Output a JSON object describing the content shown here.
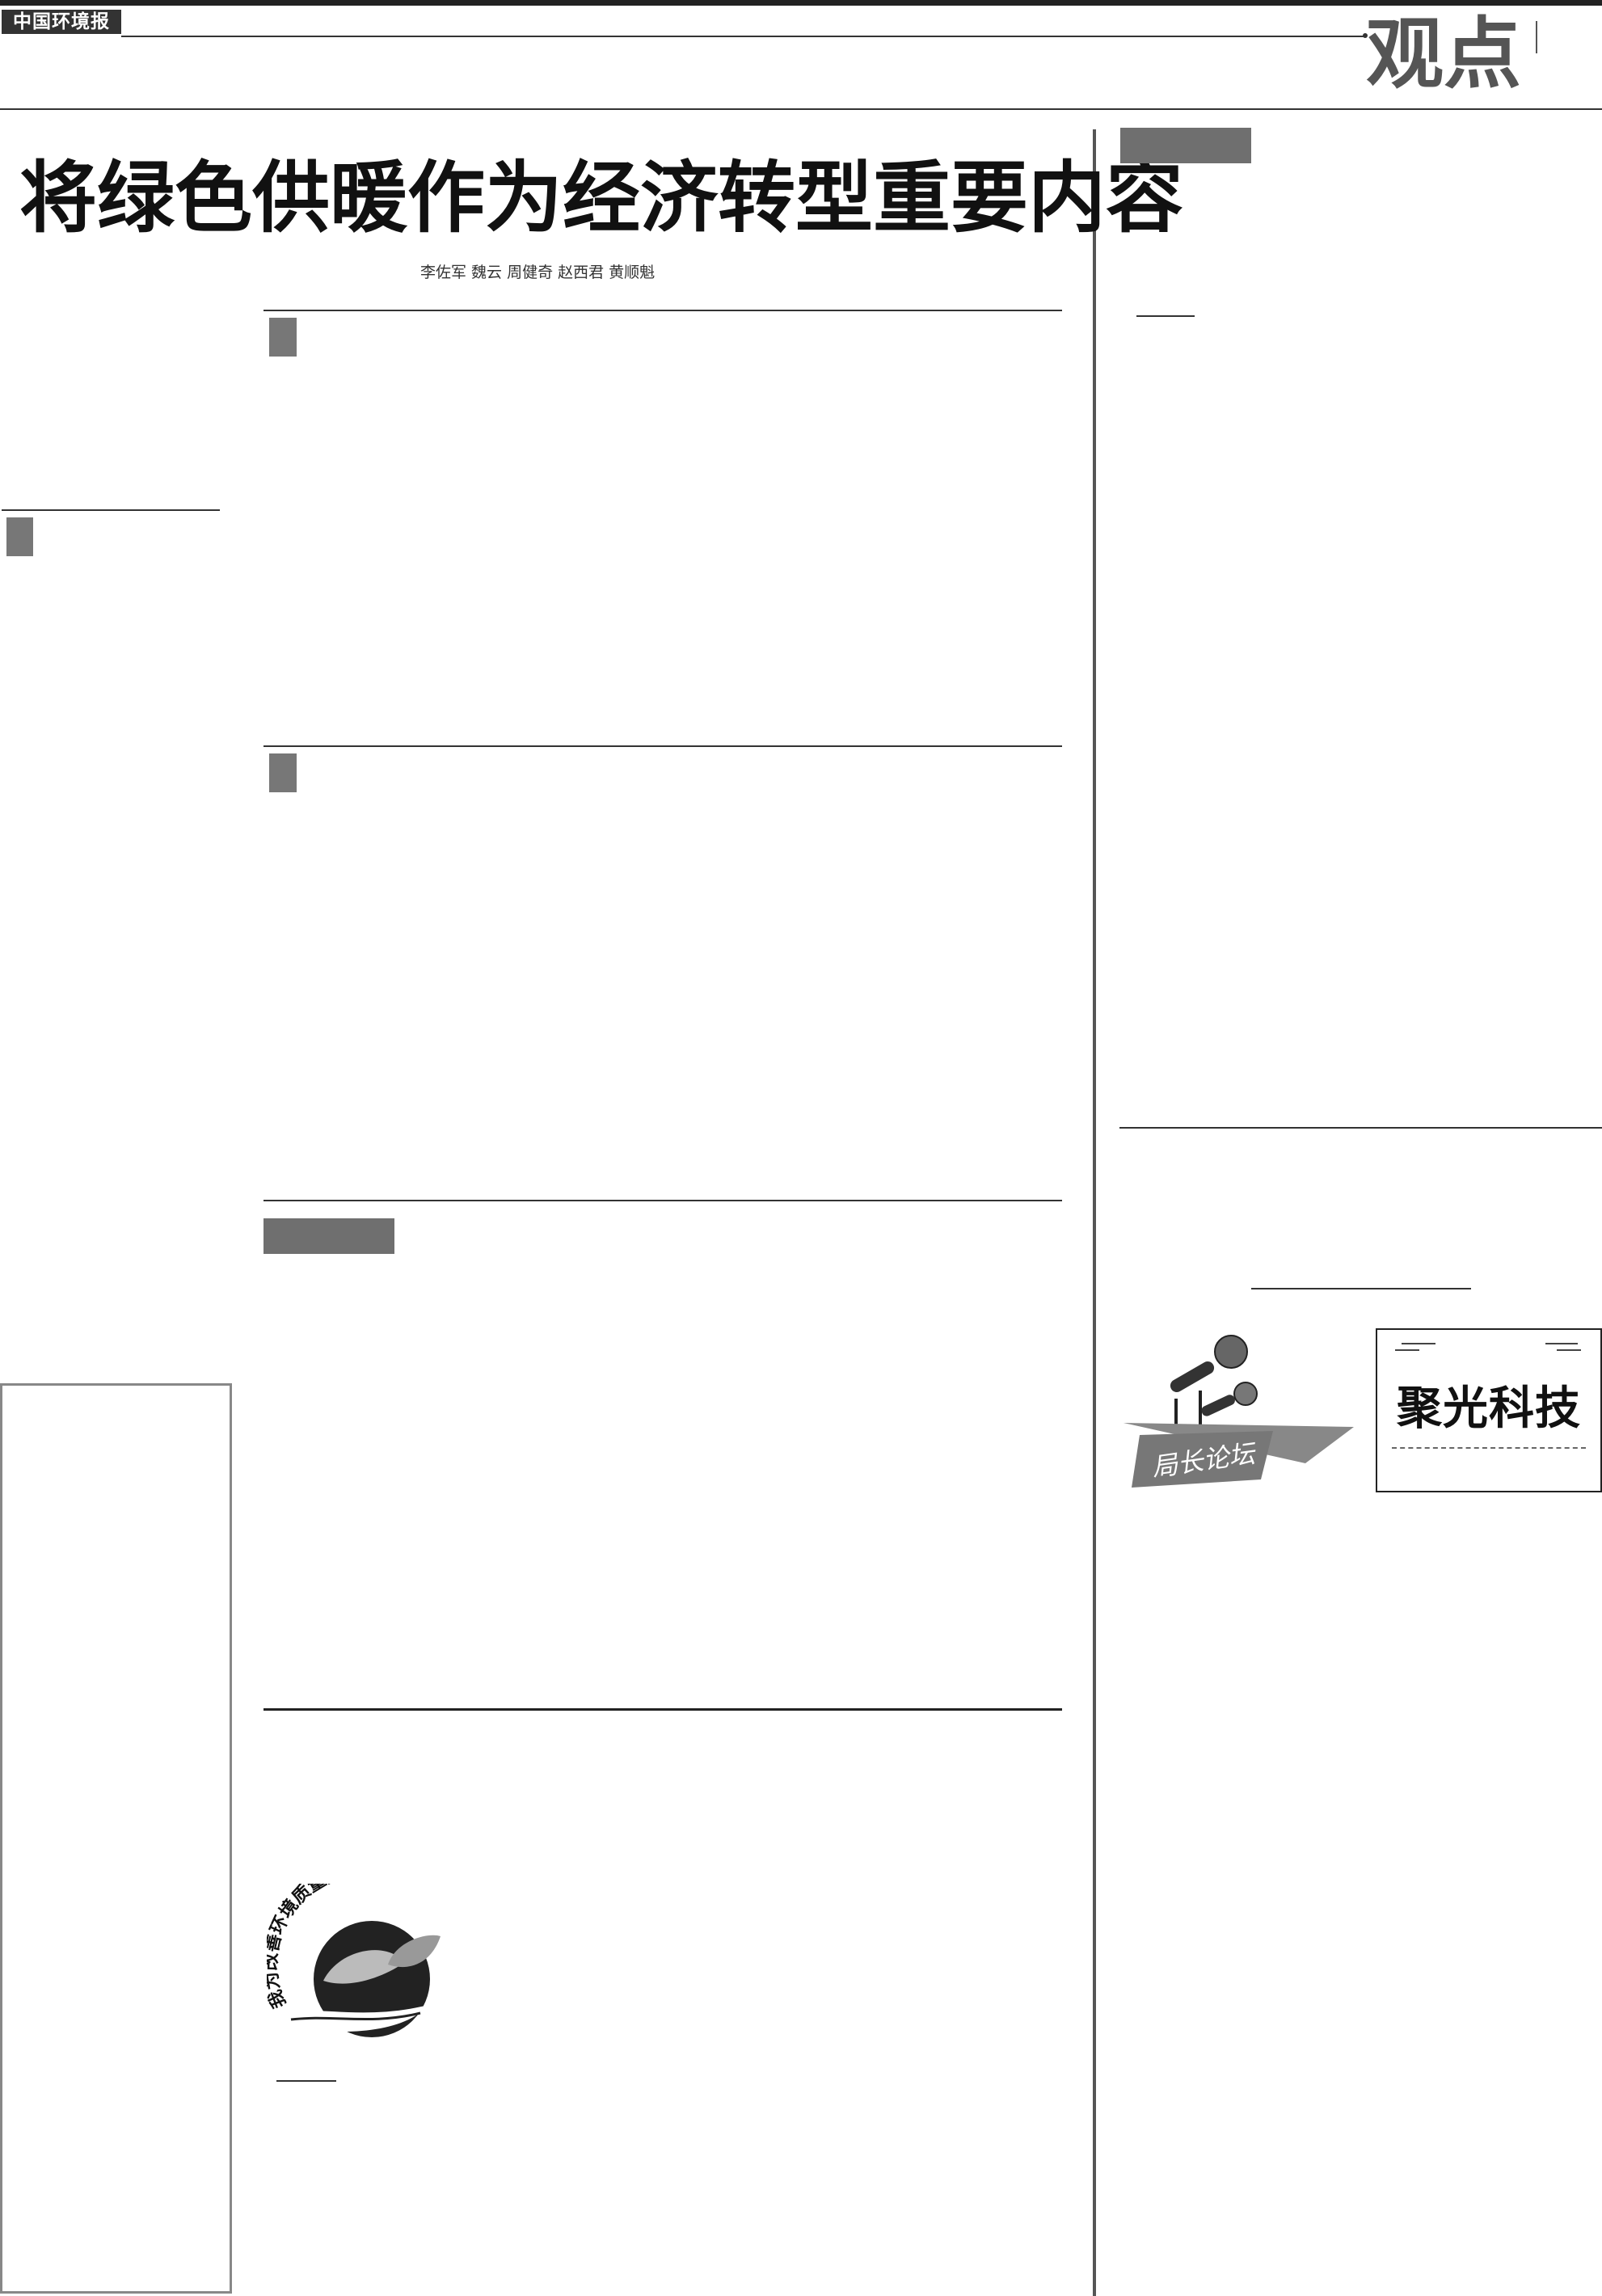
{
  "masthead": {
    "paper_name": "中国环境报",
    "section": "观点"
  },
  "article": {
    "headline": "将绿色供暖作为经济转型重要内容",
    "byline": "李佐军 魏云 周健奇 赵西君 黄顺魁"
  },
  "emblem": {
    "motto": "我为改善环境质量献一策"
  },
  "forum_banner": {
    "label": "局长论坛"
  },
  "advertisement": {
    "title": "聚光科技"
  },
  "colors": {
    "rule": "#333333",
    "marker": "#777777",
    "label_box": "#6f6f6f",
    "section_text": "#555555"
  }
}
